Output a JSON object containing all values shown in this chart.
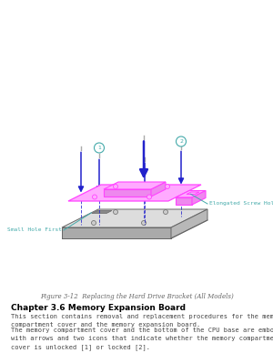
{
  "bg_color": "#ffffff",
  "fig_caption": "Figure 3-12  Replacing the Hard Drive Bracket (All Models)",
  "chapter_heading": "Chapter 3.6 Memory Expansion Board",
  "para1": "This section contains removal and replacement procedures for the memory\ncompartment cover and the memory expansion board.",
  "para2": "The memory compartment cover and the bottom of the CPU base are embossed\nwith arrows and two icons that indicate whether the memory compartment\ncover is unlocked [1] or locked [2].",
  "label_elongated": "Elongated Screw Hole",
  "label_small_hole": "Small Hole First",
  "arrow_blue": "#2222cc",
  "magenta": "#ff44ff",
  "magenta_fill": "#ffaaff",
  "cyan_line": "#44aaaa",
  "dark_gray": "#666666",
  "mid_gray": "#aaaaaa",
  "light_gray": "#dddddd",
  "box_gray": "#cccccc",
  "circle_stroke": "#44aaaa",
  "text_color": "#444444",
  "caption_color": "#666666",
  "screw_gray": "#aaaaaa"
}
